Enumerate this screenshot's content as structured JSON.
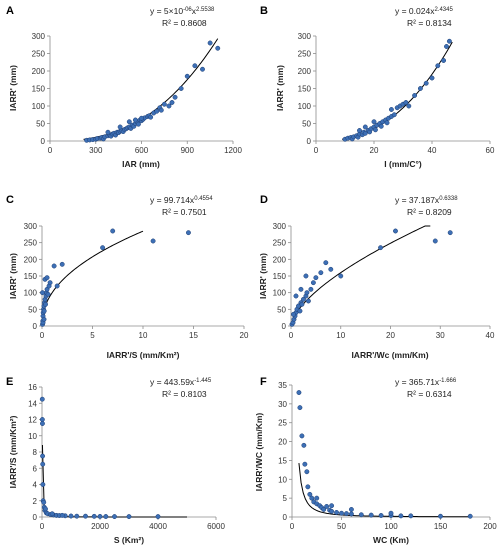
{
  "colors": {
    "point_fill": "#3d6fb5",
    "point_stroke": "#1f3f73",
    "fit_line": "#000000",
    "axis": "#8c8c8c"
  },
  "chart_data": [
    {
      "id": "A",
      "type": "scatter",
      "xlabel": "IAR (mm)",
      "ylabel": "IARR' (mm)",
      "xlim": [
        0,
        1200
      ],
      "ylim": [
        0,
        300
      ],
      "xticks": [
        0,
        300,
        600,
        900,
        1200
      ],
      "yticks": [
        0,
        50,
        100,
        150,
        200,
        250,
        300
      ],
      "eq": "y = 5×10",
      "eq_exp1": "-06",
      "eq_mid": "x",
      "eq_exp2": "2.5538",
      "r2": "R² = 0.8608",
      "fit": {
        "kind": "power",
        "a": 5e-06,
        "b": 2.5538,
        "x0": 220,
        "x1": 1100
      },
      "points": [
        [
          240,
          2
        ],
        [
          260,
          3
        ],
        [
          280,
          4
        ],
        [
          300,
          5
        ],
        [
          310,
          7
        ],
        [
          330,
          8
        ],
        [
          340,
          10
        ],
        [
          350,
          6
        ],
        [
          360,
          12
        ],
        [
          380,
          15
        ],
        [
          390,
          18
        ],
        [
          400,
          14
        ],
        [
          410,
          20
        ],
        [
          420,
          22
        ],
        [
          430,
          17
        ],
        [
          440,
          25
        ],
        [
          450,
          24
        ],
        [
          460,
          28
        ],
        [
          470,
          30
        ],
        [
          480,
          27
        ],
        [
          490,
          33
        ],
        [
          500,
          35
        ],
        [
          510,
          38
        ],
        [
          520,
          40
        ],
        [
          530,
          36
        ],
        [
          540,
          45
        ],
        [
          550,
          42
        ],
        [
          560,
          50
        ],
        [
          570,
          55
        ],
        [
          580,
          48
        ],
        [
          590,
          60
        ],
        [
          600,
          58
        ],
        [
          610,
          62
        ],
        [
          620,
          66
        ],
        [
          640,
          70
        ],
        [
          650,
          72
        ],
        [
          660,
          68
        ],
        [
          680,
          80
        ],
        [
          700,
          85
        ],
        [
          720,
          95
        ],
        [
          730,
          88
        ],
        [
          750,
          105
        ],
        [
          780,
          100
        ],
        [
          800,
          110
        ],
        [
          820,
          125
        ],
        [
          860,
          150
        ],
        [
          900,
          185
        ],
        [
          950,
          215
        ],
        [
          1000,
          205
        ],
        [
          1050,
          280
        ],
        [
          1100,
          265
        ],
        [
          560,
          60
        ],
        [
          600,
          65
        ],
        [
          460,
          40
        ],
        [
          380,
          25
        ],
        [
          520,
          55
        ]
      ]
    },
    {
      "id": "B",
      "type": "scatter",
      "xlabel": "I (mm/C°)",
      "ylabel": "IARR' (mm)",
      "xlim": [
        0,
        60
      ],
      "ylim": [
        0,
        300
      ],
      "xticks": [
        0,
        20,
        40,
        60
      ],
      "yticks": [
        0,
        50,
        100,
        150,
        200,
        250,
        300
      ],
      "eq": "y = 0.024x",
      "eq_exp1": "",
      "eq_mid": "",
      "eq_exp2": "2.4345",
      "r2": "R² = 0.8134",
      "fit": {
        "kind": "power",
        "a": 0.024,
        "b": 2.4345,
        "x0": 9,
        "x1": 47
      },
      "points": [
        [
          10,
          5
        ],
        [
          11,
          8
        ],
        [
          12,
          10
        ],
        [
          12.5,
          6
        ],
        [
          13,
          12
        ],
        [
          14,
          15
        ],
        [
          14.5,
          11
        ],
        [
          15,
          20
        ],
        [
          16,
          18
        ],
        [
          16.5,
          25
        ],
        [
          17,
          22
        ],
        [
          18,
          30
        ],
        [
          18.5,
          26
        ],
        [
          19,
          35
        ],
        [
          20,
          40
        ],
        [
          20.5,
          32
        ],
        [
          21,
          45
        ],
        [
          22,
          50
        ],
        [
          22.5,
          42
        ],
        [
          23,
          55
        ],
        [
          24,
          60
        ],
        [
          24.5,
          52
        ],
        [
          25,
          65
        ],
        [
          26,
          70
        ],
        [
          27,
          75
        ],
        [
          28,
          95
        ],
        [
          29,
          100
        ],
        [
          30,
          105
        ],
        [
          31,
          110
        ],
        [
          32,
          100
        ],
        [
          34,
          130
        ],
        [
          36,
          150
        ],
        [
          38,
          165
        ],
        [
          40,
          180
        ],
        [
          42,
          215
        ],
        [
          44,
          230
        ],
        [
          45,
          270
        ],
        [
          46,
          285
        ],
        [
          17,
          40
        ],
        [
          20,
          55
        ],
        [
          26,
          90
        ],
        [
          15,
          30
        ]
      ]
    },
    {
      "id": "C",
      "type": "scatter",
      "xlabel": "IARR'/S (mm/Km²)",
      "ylabel": "IARR' (mm)",
      "xlim": [
        0,
        20
      ],
      "ylim": [
        0,
        300
      ],
      "xticks": [
        0,
        5,
        10,
        15,
        20
      ],
      "yticks": [
        0,
        50,
        100,
        150,
        200,
        250,
        300
      ],
      "eq": "y = 99.714x",
      "eq_exp1": "",
      "eq_mid": "",
      "eq_exp2": "0.4554",
      "r2": "R² = 0.7501",
      "fit": {
        "kind": "power",
        "a": 99.714,
        "b": 0.4554,
        "x0": 0.02,
        "x1": 10
      },
      "points": [
        [
          0.05,
          5
        ],
        [
          0.08,
          15
        ],
        [
          0.1,
          30
        ],
        [
          0.12,
          40
        ],
        [
          0.15,
          50
        ],
        [
          0.2,
          60
        ],
        [
          0.22,
          45
        ],
        [
          0.25,
          70
        ],
        [
          0.3,
          80
        ],
        [
          0.35,
          65
        ],
        [
          0.4,
          90
        ],
        [
          0.45,
          100
        ],
        [
          0.5,
          110
        ],
        [
          0.6,
          95
        ],
        [
          0.7,
          120
        ],
        [
          0.8,
          130
        ],
        [
          0.3,
          140
        ],
        [
          0.5,
          145
        ],
        [
          1.2,
          180
        ],
        [
          1.5,
          120
        ],
        [
          2,
          185
        ],
        [
          6,
          235
        ],
        [
          7,
          285
        ],
        [
          11,
          255
        ],
        [
          14.5,
          280
        ],
        [
          0.1,
          10
        ],
        [
          0.2,
          20
        ],
        [
          0.05,
          100
        ]
      ]
    },
    {
      "id": "D",
      "type": "scatter",
      "xlabel": "IARR'/Wc (mm/Km)",
      "ylabel": "IARR' (mm)",
      "xlim": [
        0,
        40
      ],
      "ylim": [
        0,
        300
      ],
      "xticks": [
        0,
        10,
        20,
        30,
        40
      ],
      "yticks": [
        0,
        50,
        100,
        150,
        200,
        250,
        300
      ],
      "eq": "y = 37.187x",
      "eq_exp1": "",
      "eq_mid": "",
      "eq_exp2": "0.6338",
      "r2": "R² = 0.8209",
      "fit": {
        "kind": "power",
        "a": 37.187,
        "b": 0.6338,
        "x0": 0.1,
        "x1": 28
      },
      "points": [
        [
          0.2,
          5
        ],
        [
          0.4,
          10
        ],
        [
          0.6,
          20
        ],
        [
          0.8,
          30
        ],
        [
          1,
          40
        ],
        [
          1.2,
          50
        ],
        [
          1.5,
          60
        ],
        [
          1.8,
          45
        ],
        [
          2,
          70
        ],
        [
          2.2,
          65
        ],
        [
          2.5,
          80
        ],
        [
          3,
          90
        ],
        [
          3.2,
          100
        ],
        [
          3.5,
          75
        ],
        [
          4,
          110
        ],
        [
          4.5,
          130
        ],
        [
          5,
          145
        ],
        [
          3,
          150
        ],
        [
          6,
          160
        ],
        [
          7,
          190
        ],
        [
          8,
          170
        ],
        [
          10,
          150
        ],
        [
          18,
          235
        ],
        [
          21,
          285
        ],
        [
          29,
          255
        ],
        [
          32,
          280
        ],
        [
          1,
          90
        ],
        [
          2,
          110
        ],
        [
          0.5,
          35
        ]
      ]
    },
    {
      "id": "E",
      "type": "scatter",
      "xlabel": "S (Km²)",
      "ylabel": "IARR'/S (mm/Km²)",
      "xlim": [
        0,
        6000
      ],
      "ylim": [
        0,
        16
      ],
      "xticks": [
        0,
        2000,
        4000,
        6000
      ],
      "yticks": [
        0,
        2,
        4,
        6,
        8,
        10,
        12,
        14,
        16
      ],
      "eq": "y = 443.59x",
      "eq_exp1": "",
      "eq_mid": "",
      "eq_exp2": "-1.445",
      "r2": "R² = 0.8103",
      "fit": {
        "kind": "power",
        "a": 443.59,
        "b": -1.445,
        "x0": 15,
        "x1": 5000
      },
      "points": [
        [
          10,
          14.5
        ],
        [
          12,
          12
        ],
        [
          15,
          11.5
        ],
        [
          20,
          7.5
        ],
        [
          25,
          6.5
        ],
        [
          30,
          4
        ],
        [
          40,
          2
        ],
        [
          60,
          1.8
        ],
        [
          80,
          1.2
        ],
        [
          100,
          0.8
        ],
        [
          150,
          0.5
        ],
        [
          200,
          0.4
        ],
        [
          300,
          0.3
        ],
        [
          400,
          0.25
        ],
        [
          500,
          0.2
        ],
        [
          600,
          0.18
        ],
        [
          800,
          0.15
        ],
        [
          1000,
          0.12
        ],
        [
          1200,
          0.1
        ],
        [
          1500,
          0.1
        ],
        [
          1800,
          0.08
        ],
        [
          2000,
          0.07
        ],
        [
          2200,
          0.06
        ],
        [
          2500,
          0.05
        ],
        [
          3000,
          0.05
        ],
        [
          4000,
          0.05
        ],
        [
          350,
          0.4
        ],
        [
          700,
          0.2
        ],
        [
          120,
          1.0
        ]
      ]
    },
    {
      "id": "F",
      "type": "scatter",
      "xlabel": "WC (Km)",
      "ylabel": "IARR'/WC (mm/Km)",
      "xlim": [
        0,
        200
      ],
      "ylim": [
        0,
        35
      ],
      "xticks": [
        0,
        50,
        100,
        150,
        200
      ],
      "yticks": [
        0,
        5,
        10,
        15,
        20,
        25,
        30,
        35
      ],
      "eq": "y = 365.71x",
      "eq_exp1": "",
      "eq_mid": "",
      "eq_exp2": "-1.666",
      "r2": "R² = 0.6314",
      "fit": {
        "kind": "power",
        "a": 365.71,
        "b": -1.666,
        "x0": 7,
        "x1": 180
      },
      "points": [
        [
          7,
          33
        ],
        [
          8,
          29
        ],
        [
          10,
          21.5
        ],
        [
          12,
          19
        ],
        [
          13,
          14
        ],
        [
          15,
          12
        ],
        [
          16,
          8
        ],
        [
          18,
          6
        ],
        [
          20,
          5
        ],
        [
          22,
          4
        ],
        [
          25,
          3.5
        ],
        [
          28,
          3
        ],
        [
          30,
          2.5
        ],
        [
          32,
          2
        ],
        [
          35,
          2.8
        ],
        [
          38,
          1.8
        ],
        [
          40,
          1.5
        ],
        [
          45,
          1.2
        ],
        [
          50,
          1
        ],
        [
          55,
          0.9
        ],
        [
          60,
          0.8
        ],
        [
          70,
          0.6
        ],
        [
          80,
          0.5
        ],
        [
          90,
          0.4
        ],
        [
          100,
          0.4
        ],
        [
          110,
          0.3
        ],
        [
          120,
          0.3
        ],
        [
          150,
          0.2
        ],
        [
          180,
          0.2
        ],
        [
          25,
          5
        ],
        [
          40,
          3
        ],
        [
          60,
          2
        ],
        [
          100,
          1
        ]
      ]
    }
  ]
}
